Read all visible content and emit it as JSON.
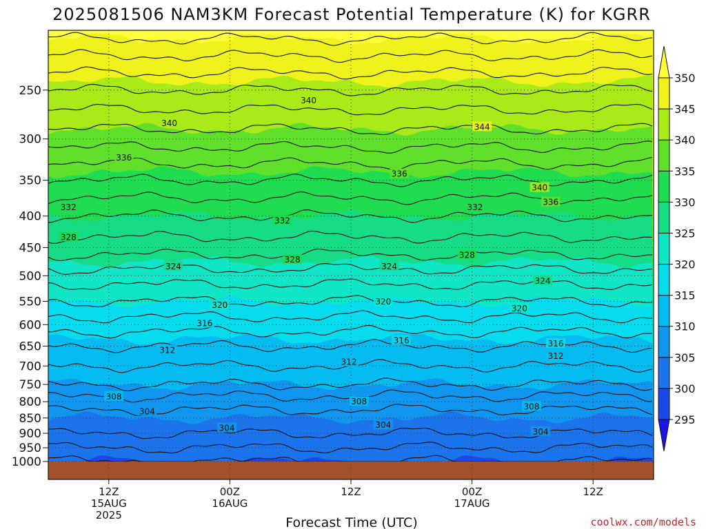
{
  "chart_data": {
    "type": "heatmap",
    "title": "2025081506 NAM3KM Forecast Potential Temperature (K) for KGRR",
    "xlabel": "Forecast Time (UTC)",
    "ylabel": "",
    "y_scale": "log-pressure",
    "y_ticks": [
      250,
      300,
      350,
      400,
      450,
      500,
      550,
      600,
      650,
      700,
      750,
      800,
      850,
      900,
      950,
      1000
    ],
    "ylim_hPa": [
      200,
      1000
    ],
    "x_ticks": [
      {
        "hour": 6,
        "lines": [
          "12Z",
          "15AUG",
          "2025"
        ]
      },
      {
        "hour": 18,
        "lines": [
          "00Z",
          "16AUG"
        ]
      },
      {
        "hour": 30,
        "lines": [
          "12Z"
        ]
      },
      {
        "hour": 42,
        "lines": [
          "00Z",
          "17AUG"
        ]
      },
      {
        "hour": 54,
        "lines": [
          "12Z"
        ]
      }
    ],
    "xlim_hours": [
      0,
      60
    ],
    "grid": true,
    "colorbar": {
      "placement": "right",
      "levels": [
        295,
        300,
        305,
        310,
        315,
        320,
        325,
        330,
        335,
        340,
        345,
        350
      ],
      "colors": [
        "#1a16e6",
        "#1c48ea",
        "#1c74ec",
        "#1096ee",
        "#04bcf2",
        "#06dcee",
        "#10e6c6",
        "#16dc86",
        "#20dc50",
        "#60e02a",
        "#aaea18",
        "#f0f21c",
        "#fffc3a"
      ]
    },
    "profile": [
      {
        "p": 200,
        "theta": 351
      },
      {
        "p": 250,
        "theta": 344
      },
      {
        "p": 300,
        "theta": 339
      },
      {
        "p": 350,
        "theta": 334
      },
      {
        "p": 400,
        "theta": 330
      },
      {
        "p": 450,
        "theta": 327
      },
      {
        "p": 500,
        "theta": 323
      },
      {
        "p": 550,
        "theta": 320
      },
      {
        "p": 600,
        "theta": 317
      },
      {
        "p": 650,
        "theta": 314
      },
      {
        "p": 700,
        "theta": 312
      },
      {
        "p": 750,
        "theta": 310
      },
      {
        "p": 800,
        "theta": 307
      },
      {
        "p": 850,
        "theta": 305
      },
      {
        "p": 900,
        "theta": 304
      },
      {
        "p": 950,
        "theta": 302
      },
      {
        "p": 1000,
        "theta": 300
      }
    ],
    "contour_labels": [
      {
        "value": "340",
        "hour": 25.8,
        "p": 260
      },
      {
        "value": "340",
        "hour": 12,
        "p": 283
      },
      {
        "value": "344",
        "hour": 43,
        "p": 287
      },
      {
        "value": "336",
        "hour": 7.5,
        "p": 322
      },
      {
        "value": "336",
        "hour": 34.8,
        "p": 342
      },
      {
        "value": "340",
        "hour": 48.7,
        "p": 360
      },
      {
        "value": "336",
        "hour": 49.8,
        "p": 380
      },
      {
        "value": "332",
        "hour": 2,
        "p": 387
      },
      {
        "value": "332",
        "hour": 42.3,
        "p": 387
      },
      {
        "value": "332",
        "hour": 23.2,
        "p": 407
      },
      {
        "value": "328",
        "hour": 2,
        "p": 433
      },
      {
        "value": "328",
        "hour": 41.5,
        "p": 463
      },
      {
        "value": "328",
        "hour": 24.2,
        "p": 471
      },
      {
        "value": "324",
        "hour": 12.4,
        "p": 483
      },
      {
        "value": "324",
        "hour": 33.8,
        "p": 483
      },
      {
        "value": "324",
        "hour": 49,
        "p": 510
      },
      {
        "value": "320",
        "hour": 33.2,
        "p": 551
      },
      {
        "value": "320",
        "hour": 17,
        "p": 558
      },
      {
        "value": "320",
        "hour": 46.7,
        "p": 565
      },
      {
        "value": "316",
        "hour": 15.5,
        "p": 597
      },
      {
        "value": "316",
        "hour": 35,
        "p": 637
      },
      {
        "value": "316",
        "hour": 50.3,
        "p": 644
      },
      {
        "value": "312",
        "hour": 11.8,
        "p": 660
      },
      {
        "value": "312",
        "hour": 50.3,
        "p": 675
      },
      {
        "value": "312",
        "hour": 29.8,
        "p": 690
      },
      {
        "value": "308",
        "hour": 6.5,
        "p": 785
      },
      {
        "value": "308",
        "hour": 30.8,
        "p": 800
      },
      {
        "value": "308",
        "hour": 47.9,
        "p": 815
      },
      {
        "value": "304",
        "hour": 9.8,
        "p": 830
      },
      {
        "value": "304",
        "hour": 33.2,
        "p": 873
      },
      {
        "value": "304",
        "hour": 17.7,
        "p": 883
      },
      {
        "value": "304",
        "hour": 48.8,
        "p": 895
      }
    ]
  },
  "credit": "coolwx.com/models"
}
